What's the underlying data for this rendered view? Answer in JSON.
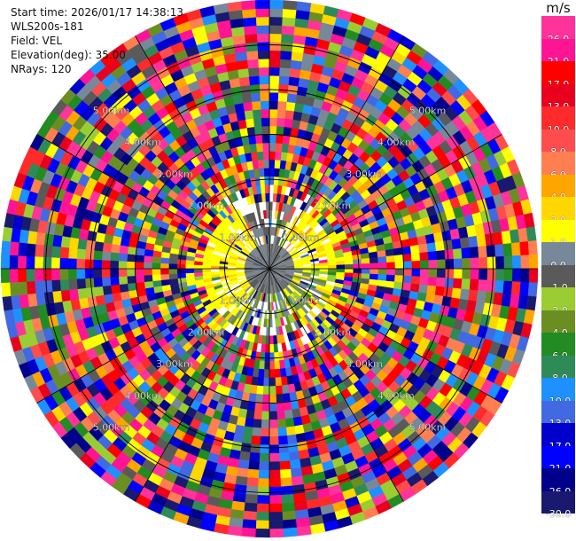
{
  "header": {
    "start_time": "Start time: 2026/01/17 14:38:13",
    "instrument": "WLS200s-181",
    "field": "Field: VEL",
    "elevation": "Elevation(deg): 35.00",
    "nrays": "NRays: 120"
  },
  "chart_data": {
    "type": "heatmap",
    "projection": "polar-ppi",
    "field": "VEL",
    "units": "m/s",
    "elevation_deg": 35.0,
    "n_rays": 120,
    "n_gates": 32,
    "range_max_km": 6.0,
    "range_ring_labels": [
      "1.00km",
      "2.00km",
      "3.00km",
      "4.00km",
      "5.00km"
    ],
    "colorbar": {
      "title": "m/s",
      "labels": [
        "26.0",
        "21.0",
        "17.0",
        "13.0",
        "10.0",
        "8.0",
        "6.0",
        "4.0",
        "2.0",
        "1.0",
        "0.0",
        "-1.0",
        "-2.0",
        "-4.0",
        "-6.0",
        "-8.0",
        "-10.0",
        "-13.0",
        "-17.0",
        "-21.0",
        "-26.0",
        "-30.0"
      ],
      "colors": [
        "#ff3399",
        "#ff1493",
        "#ff0000",
        "#e8001c",
        "#ff2a2a",
        "#ff4d4d",
        "#ff7f50",
        "#ffa500",
        "#ffd700",
        "#ffff00",
        "#778899",
        "#5a5a5a",
        "#9acd32",
        "#6b8e23",
        "#228b22",
        "#2e8b57",
        "#1e90ff",
        "#4169e1",
        "#0000cd",
        "#0000ff",
        "#00008b",
        "#191970"
      ]
    }
  }
}
